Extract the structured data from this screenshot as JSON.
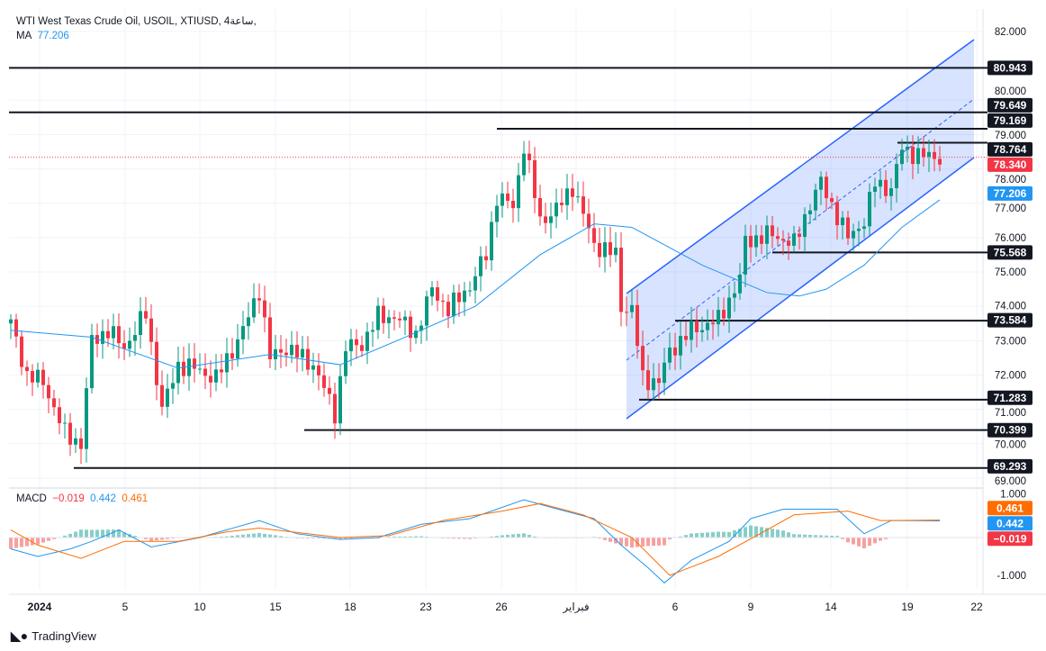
{
  "header": {
    "title": "WTI West Texas Crude Oil, USOIL, XTIUSD, 4ساعة,",
    "ma_label": "MA",
    "ma_value": "77.206"
  },
  "macd_legend": {
    "label": "MACD",
    "macd": "−0.019",
    "signal_a": "0.442",
    "signal_b": "0.461"
  },
  "branding": "TradingView",
  "colors": {
    "up": "#089981",
    "down": "#f23645",
    "ma": "#2196f3",
    "macd": "#2196f3",
    "signal": "#ff6d00",
    "channel": "#2962ff"
  },
  "chart_data": {
    "type": "candlestick",
    "title": "WTI West Texas Crude Oil, USOIL, XTIUSD, 4H",
    "y_ticks": [
      "82.000",
      "80.000",
      "79.000",
      "78.000",
      "77.000",
      "76.000",
      "75.000",
      "74.000",
      "73.000",
      "72.000",
      "71.000",
      "70.000",
      "69.000"
    ],
    "y_tick_values": [
      82,
      80,
      79,
      78,
      77,
      76,
      75,
      74,
      73,
      72,
      71,
      70,
      69
    ],
    "x_ticks": [
      "2024",
      "5",
      "10",
      "15",
      "18",
      "23",
      "26",
      "فبراير",
      "6",
      "9",
      "14",
      "19",
      "22"
    ],
    "close_path": [
      [
        0,
        73.5
      ],
      [
        3,
        72.0
      ],
      [
        6,
        71.8
      ],
      [
        10,
        70.3
      ],
      [
        13,
        70.0
      ],
      [
        15,
        73.0
      ],
      [
        18,
        73.3
      ],
      [
        21,
        72.8
      ],
      [
        25,
        73.8
      ],
      [
        28,
        71.0
      ],
      [
        31,
        72.3
      ],
      [
        34,
        72.2
      ],
      [
        38,
        71.9
      ],
      [
        43,
        73.3
      ],
      [
        46,
        74.5
      ],
      [
        48,
        72.5
      ],
      [
        51,
        72.8
      ],
      [
        56,
        72.3
      ],
      [
        60,
        70.9
      ],
      [
        62,
        72.8
      ],
      [
        65,
        72.9
      ],
      [
        68,
        73.7
      ],
      [
        71,
        73.7
      ],
      [
        75,
        73.2
      ],
      [
        78,
        74.5
      ],
      [
        81,
        73.9
      ],
      [
        85,
        74.6
      ],
      [
        88,
        75.5
      ],
      [
        90,
        77.2
      ],
      [
        93,
        76.9
      ],
      [
        95,
        78.7
      ],
      [
        98,
        76.5
      ],
      [
        101,
        76.8
      ],
      [
        104,
        77.5
      ],
      [
        108,
        75.8
      ],
      [
        112,
        75.5
      ],
      [
        113,
        74.0
      ],
      [
        115,
        73.9
      ],
      [
        117,
        71.9
      ],
      [
        120,
        71.8
      ],
      [
        122,
        72.7
      ],
      [
        126,
        73.3
      ],
      [
        131,
        73.6
      ],
      [
        135,
        74.8
      ],
      [
        136,
        75.9
      ],
      [
        141,
        76.1
      ],
      [
        145,
        75.8
      ],
      [
        148,
        77.0
      ],
      [
        150,
        77.6
      ],
      [
        155,
        76.0
      ],
      [
        158,
        76.5
      ],
      [
        160,
        77.6
      ],
      [
        163,
        77.4
      ],
      [
        165,
        78.6
      ],
      [
        168,
        78.4
      ],
      [
        172,
        78.34
      ]
    ],
    "ma": [
      [
        0,
        73.3
      ],
      [
        15,
        73.1
      ],
      [
        31,
        72.2
      ],
      [
        48,
        72.6
      ],
      [
        61,
        72.3
      ],
      [
        73,
        73.1
      ],
      [
        86,
        74.0
      ],
      [
        98,
        75.5
      ],
      [
        108,
        76.4
      ],
      [
        115,
        76.3
      ],
      [
        128,
        75.2
      ],
      [
        140,
        74.4
      ],
      [
        146,
        74.3
      ],
      [
        151,
        74.5
      ],
      [
        158,
        75.2
      ],
      [
        165,
        76.3
      ],
      [
        172,
        77.1
      ]
    ],
    "macd_line": [
      [
        0,
        -0.3
      ],
      [
        5,
        -0.5
      ],
      [
        11,
        -0.3
      ],
      [
        15,
        -0.1
      ],
      [
        20,
        0.2
      ],
      [
        26,
        -0.25
      ],
      [
        35,
        0.0
      ],
      [
        46,
        0.45
      ],
      [
        53,
        0.1
      ],
      [
        61,
        -0.05
      ],
      [
        68,
        0.0
      ],
      [
        76,
        0.35
      ],
      [
        85,
        0.5
      ],
      [
        95,
        1.0
      ],
      [
        100,
        0.8
      ],
      [
        108,
        0.5
      ],
      [
        113,
        -0.2
      ],
      [
        118,
        -0.8
      ],
      [
        121,
        -1.2
      ],
      [
        126,
        -0.6
      ],
      [
        133,
        -0.1
      ],
      [
        137,
        0.5
      ],
      [
        143,
        0.75
      ],
      [
        153,
        0.75
      ],
      [
        158,
        0.1
      ],
      [
        163,
        0.45
      ],
      [
        172,
        0.44
      ]
    ],
    "signal_line": [
      [
        0,
        0.2
      ],
      [
        5,
        -0.2
      ],
      [
        13,
        -0.55
      ],
      [
        21,
        -0.1
      ],
      [
        31,
        -0.1
      ],
      [
        40,
        0.15
      ],
      [
        46,
        0.25
      ],
      [
        55,
        0.1
      ],
      [
        61,
        0.0
      ],
      [
        70,
        0.05
      ],
      [
        80,
        0.45
      ],
      [
        91,
        0.7
      ],
      [
        98,
        0.9
      ],
      [
        106,
        0.6
      ],
      [
        115,
        0.0
      ],
      [
        122,
        -1.0
      ],
      [
        131,
        -0.5
      ],
      [
        140,
        0.2
      ],
      [
        145,
        0.6
      ],
      [
        155,
        0.7
      ],
      [
        161,
        0.45
      ],
      [
        172,
        0.46
      ]
    ],
    "levels": [
      "80.943",
      "79.649",
      "79.169",
      "78.764",
      "75.568",
      "73.584",
      "71.283",
      "70.399",
      "69.293"
    ],
    "level_values": [
      80.943,
      79.649,
      79.169,
      78.764,
      75.568,
      73.584,
      71.283,
      70.399,
      69.293
    ],
    "current_price": "78.340",
    "current_price_value": 78.34,
    "ma_tag": "77.206",
    "macd_ticks": [
      "1.000",
      "-1.000"
    ],
    "macd_tags": [
      "0.461",
      "0.442",
      "−0.019"
    ]
  }
}
